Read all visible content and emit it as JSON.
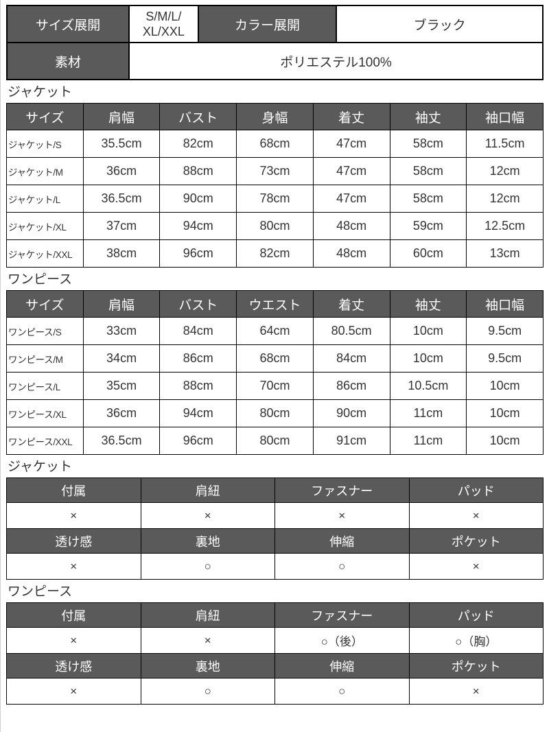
{
  "info": {
    "size_label": "サイズ展開",
    "size_value": "S/M/L/\nXL/XXL",
    "color_label": "カラー展開",
    "color_value": "ブラック",
    "material_label": "素材",
    "material_value": "ポリエステル100%"
  },
  "sections": {
    "jacket_size_title": "ジャケット",
    "onepiece_size_title": "ワンピース",
    "jacket_attr_title": "ジャケット",
    "onepiece_attr_title": "ワンピース"
  },
  "tables": {
    "jacket_size": {
      "headers": [
        "サイズ",
        "肩幅",
        "バスト",
        "身幅",
        "着丈",
        "袖丈",
        "袖口幅"
      ],
      "rows": [
        [
          "ジャケット/S",
          "35.5cm",
          "82cm",
          "68cm",
          "47cm",
          "58cm",
          "11.5cm"
        ],
        [
          "ジャケット/M",
          "36cm",
          "88cm",
          "73cm",
          "47cm",
          "58cm",
          "12cm"
        ],
        [
          "ジャケット/L",
          "36.5cm",
          "90cm",
          "78cm",
          "47cm",
          "58cm",
          "12cm"
        ],
        [
          "ジャケット/XL",
          "37cm",
          "94cm",
          "80cm",
          "48cm",
          "59cm",
          "12.5cm"
        ],
        [
          "ジャケット/XXL",
          "38cm",
          "96cm",
          "82cm",
          "48cm",
          "60cm",
          "13cm"
        ]
      ]
    },
    "onepiece_size": {
      "headers": [
        "サイズ",
        "肩幅",
        "バスト",
        "ウエスト",
        "着丈",
        "袖丈",
        "袖口幅"
      ],
      "rows": [
        [
          "ワンピース/S",
          "33cm",
          "84cm",
          "64cm",
          "80.5cm",
          "10cm",
          "9.5cm"
        ],
        [
          "ワンピース/M",
          "34cm",
          "86cm",
          "68cm",
          "84cm",
          "10cm",
          "9.5cm"
        ],
        [
          "ワンピース/L",
          "35cm",
          "88cm",
          "70cm",
          "86cm",
          "10.5cm",
          "10cm"
        ],
        [
          "ワンピース/XL",
          "36cm",
          "94cm",
          "80cm",
          "90cm",
          "11cm",
          "10cm"
        ],
        [
          "ワンピース/XXL",
          "36.5cm",
          "96cm",
          "80cm",
          "91cm",
          "11cm",
          "10cm"
        ]
      ]
    },
    "jacket_attrs": {
      "rows": [
        {
          "type": "header",
          "cells": [
            "付属",
            "肩紐",
            "ファスナー",
            "パッド"
          ]
        },
        {
          "type": "value",
          "cells": [
            "×",
            "×",
            "×",
            "×"
          ]
        },
        {
          "type": "header",
          "cells": [
            "透け感",
            "裏地",
            "伸縮",
            "ポケット"
          ]
        },
        {
          "type": "value",
          "cells": [
            "×",
            "○",
            "○",
            "×"
          ]
        }
      ]
    },
    "onepiece_attrs": {
      "rows": [
        {
          "type": "header",
          "cells": [
            "付属",
            "肩紐",
            "ファスナー",
            "パッド"
          ]
        },
        {
          "type": "value",
          "cells": [
            "×",
            "×",
            "○（後）",
            "○（胸）"
          ]
        },
        {
          "type": "header",
          "cells": [
            "透け感",
            "裏地",
            "伸縮",
            "ポケット"
          ]
        },
        {
          "type": "value",
          "cells": [
            "×",
            "○",
            "○",
            "×"
          ]
        }
      ]
    }
  },
  "colors": {
    "header_bg": "#5a5a5a",
    "header_text": "#ffffff",
    "body_text": "#333333",
    "border": "#000000",
    "page_bg": "#ffffff"
  }
}
